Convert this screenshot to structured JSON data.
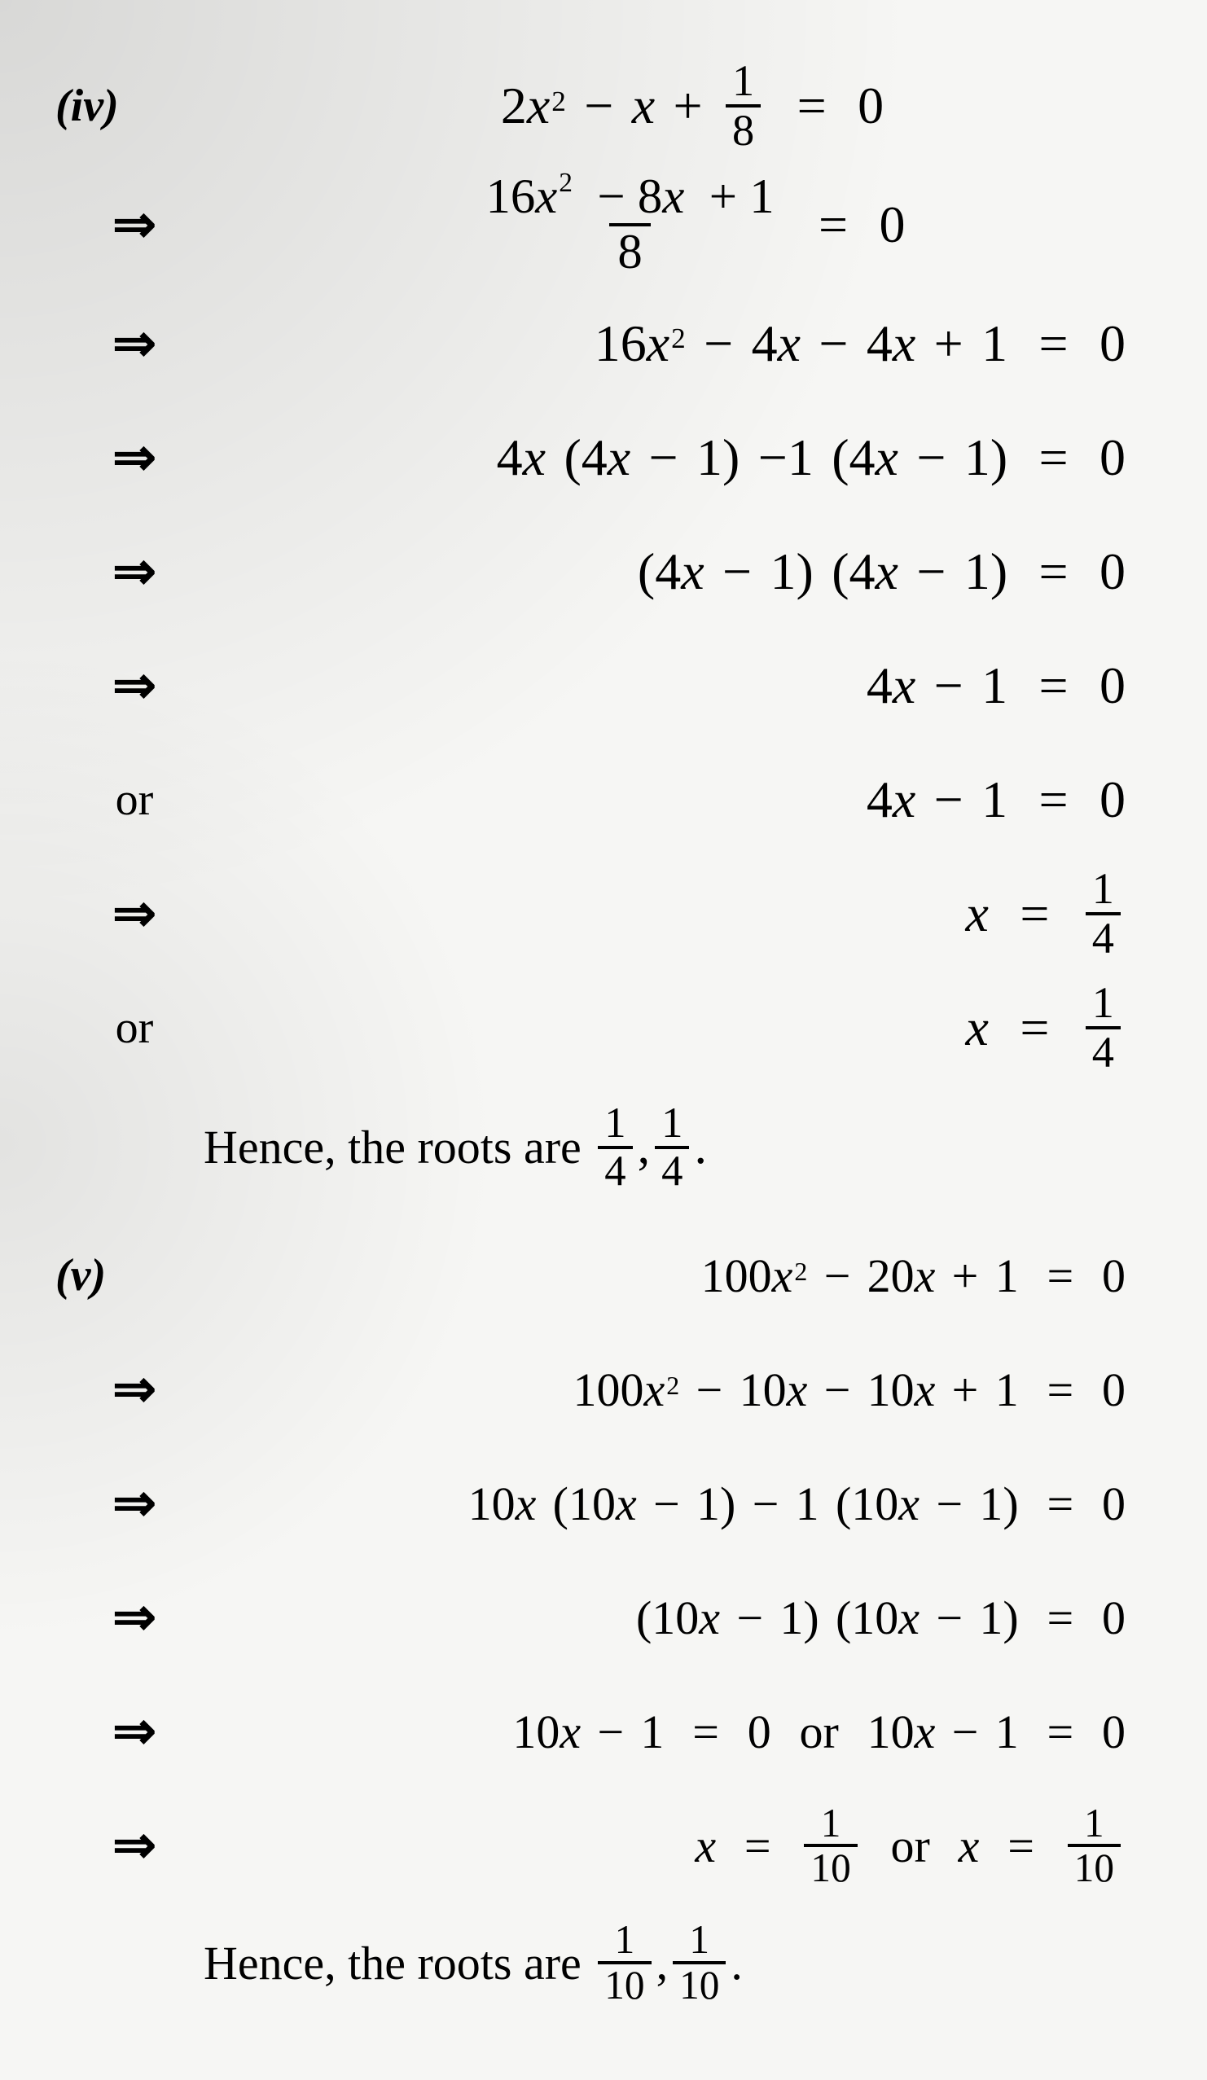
{
  "labels": {
    "arrow": "⇒",
    "or": "or",
    "hence_prefix": "Hence, the roots are",
    "comma": ",",
    "period": "."
  },
  "problems": {
    "iv": {
      "marker": "(iv)",
      "numbers": {
        "two": "2",
        "one": "1",
        "eight": "8",
        "zero": "0",
        "sixteen": "16",
        "four": "4",
        "minus_eight": "8",
        "root_num": "1",
        "root_den": "4"
      },
      "lines": {
        "l1_lhs": "2x^2 − x + 1/8",
        "l2_lhs": "(16x^2 − 8x + 1)/8",
        "l3_lhs": "16x^2 − 4x − 4x + 1",
        "l4_lhs": "4x (4x − 1) − 1 (4x − 1)",
        "l5_lhs": "(4x − 1) (4x − 1)",
        "l6_lhs": "4x − 1",
        "l7_lhs": "4x − 1",
        "l8_lhs": "x",
        "l9_lhs": "x"
      }
    },
    "v": {
      "marker": "(v)",
      "numbers": {
        "hundred": "100",
        "twenty": "20",
        "one": "1",
        "zero": "0",
        "ten": "10",
        "root_num": "1",
        "root_den": "10"
      },
      "lines": {
        "l1_lhs": "100x^2 − 20x + 1",
        "l2_lhs": "100x^2 − 10x − 10x + 1",
        "l3_lhs": "10x (10x − 1) − 1 (10x − 1)",
        "l4_lhs": "(10x − 1) (10x − 1)",
        "l5_lhs": "10x − 1 = 0 or 10x − 1 = 0",
        "l6_lhs": "x = 1/10 or x = 1/10"
      }
    }
  }
}
